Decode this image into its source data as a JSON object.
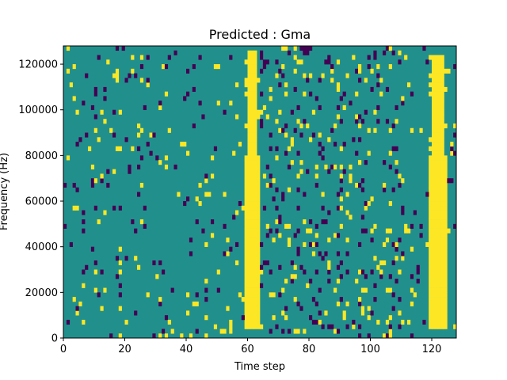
{
  "chart_data": {
    "type": "heatmap",
    "title": "Predicted : Gma",
    "xlabel": "Time step",
    "ylabel": "Frequency (Hz)",
    "xlim": [
      0,
      128
    ],
    "ylim": [
      0,
      128000
    ],
    "x_ticks": [
      0,
      20,
      40,
      60,
      80,
      100,
      120
    ],
    "y_ticks": [
      0,
      20000,
      40000,
      60000,
      80000,
      100000,
      120000
    ],
    "colormap": {
      "background": "#21908d",
      "high": "#fde725",
      "low": "#440154"
    },
    "grid": false,
    "n_time_steps": 128,
    "n_freq_bins": 64,
    "value_levels": [
      "low",
      "background",
      "high"
    ],
    "high_bands": [
      {
        "x_start": 59,
        "x_end": 63,
        "y_min": 4000,
        "y_max": 126000
      },
      {
        "x_start": 119,
        "x_end": 124,
        "y_min": 4000,
        "y_max": 124000
      }
    ]
  }
}
